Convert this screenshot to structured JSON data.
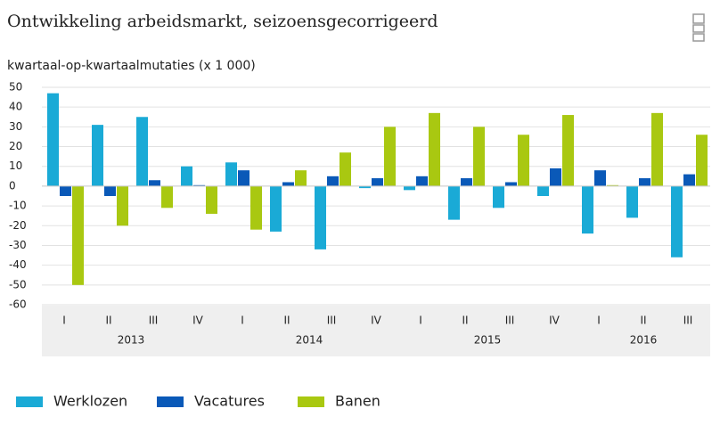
{
  "chart_data": {
    "type": "bar",
    "title": "Ontwikkeling arbeidsmarkt, seizoensgecorrigeerd",
    "y_label": "kwartaal-op-kwartaalmutaties (x 1 000)",
    "categories": [
      "I",
      "II",
      "III",
      "IV",
      "I",
      "II",
      "III",
      "IV",
      "I",
      "II",
      "III",
      "IV",
      "I",
      "II",
      "III"
    ],
    "years": [
      "2013",
      "2014",
      "2015",
      "2016"
    ],
    "series": [
      {
        "name": "Werklozen",
        "color": "#1aaad6",
        "values": [
          47,
          31,
          35,
          10,
          12,
          -23,
          -32,
          -1,
          -2,
          -17,
          -11,
          -5,
          -24,
          -16,
          -36
        ]
      },
      {
        "name": "Vacatures",
        "color": "#0a59b8",
        "values": [
          -5,
          -5,
          3,
          0.5,
          8,
          2,
          5,
          4,
          5,
          4,
          2,
          9,
          8,
          4,
          6
        ]
      },
      {
        "name": "Banen",
        "color": "#a9c811",
        "values": [
          -50,
          -20,
          -11,
          -14,
          -22,
          8,
          17,
          30,
          37,
          30,
          26,
          36,
          0.5,
          37,
          26
        ]
      }
    ],
    "ylim": [
      -60,
      50
    ],
    "yticks": [
      -60,
      -50,
      -40,
      -30,
      -20,
      -10,
      0,
      10,
      20,
      30,
      40,
      50
    ],
    "grid": true
  }
}
